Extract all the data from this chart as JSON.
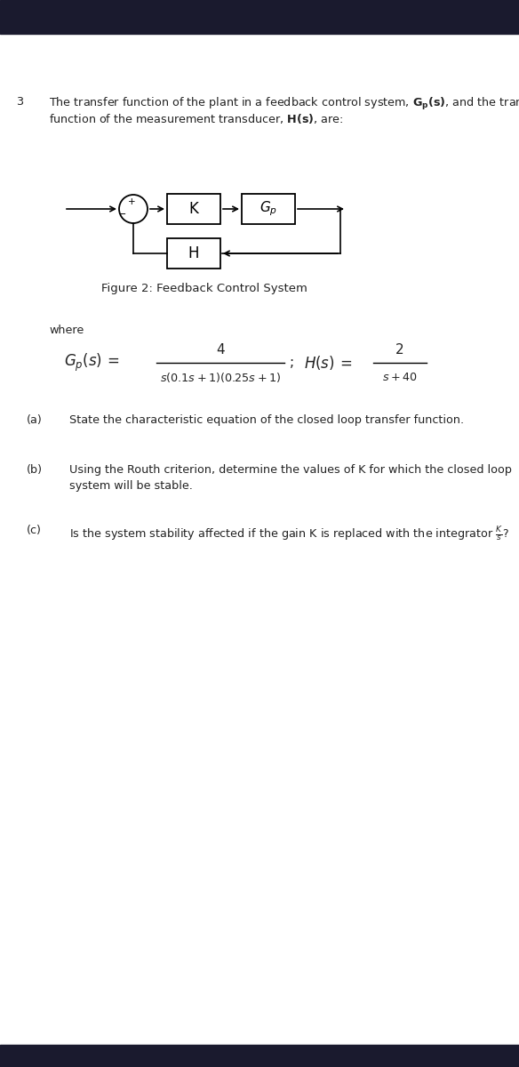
{
  "question_number": "3",
  "intro_line1": "The transfer function of the plant in a feedback control system, $\\mathbf{G_p(s)}$, and the transfer",
  "intro_line2": "function of the measurement transducer, $\\mathbf{H(s)}$, are:",
  "figure_caption": "Figure 2: Feedback Control System",
  "where_text": "where",
  "part_a_label": "(a)",
  "part_a_text": "State the characteristic equation of the closed loop transfer function.",
  "part_b_label": "(b)",
  "part_b_line1": "Using the Routh criterion, determine the values of K for which the closed loop",
  "part_b_line2": "system will be stable.",
  "part_c_label": "(c)",
  "part_c_text": "Is the system stability affected if the gain K is replaced with the integrator $\\frac{K}{s}$?",
  "bg_color": "#ffffff",
  "header_color": "#1a1a2e",
  "text_color": "#222222",
  "fig_width": 5.84,
  "fig_height": 12.0,
  "dpi": 100
}
